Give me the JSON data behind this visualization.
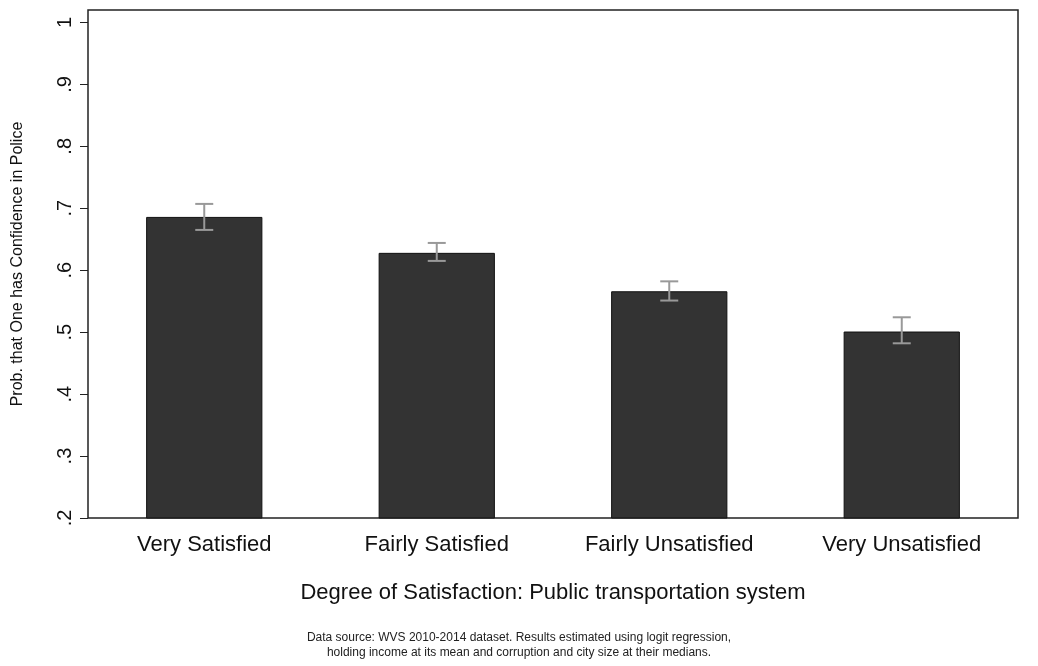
{
  "chart_data": {
    "type": "bar",
    "xlabel": "Degree of Satisfaction: Public transportation system",
    "ylabel": "Prob. that One has Confidence in Police",
    "categories": [
      "Very Satisfied",
      "Fairly Satisfied",
      "Fairly Unsatisfied",
      "Very Unsatisfied"
    ],
    "values": [
      0.686,
      0.628,
      0.566,
      0.501
    ],
    "errors": [
      [
        0.665,
        0.707
      ],
      [
        0.615,
        0.644
      ],
      [
        0.551,
        0.582
      ],
      [
        0.482,
        0.524
      ]
    ],
    "color": "#333333",
    "ylim": [
      0.2,
      1.02
    ],
    "yticks": [
      {
        "value": 0.2,
        "label": ".2"
      },
      {
        "value": 0.3,
        "label": ".3"
      },
      {
        "value": 0.4,
        "label": ".4"
      },
      {
        "value": 0.5,
        "label": ".5"
      },
      {
        "value": 0.6,
        "label": ".6"
      },
      {
        "value": 0.7,
        "label": ".7"
      },
      {
        "value": 0.8,
        "label": ".8"
      },
      {
        "value": 0.9,
        "label": ".9"
      },
      1
    ],
    "grid": false,
    "annotations": [
      "Data source: WVS 2010-2014 dataset. Results estimated using logit regression,",
      "holding income at its mean and corruption and city size at their medians."
    ]
  }
}
